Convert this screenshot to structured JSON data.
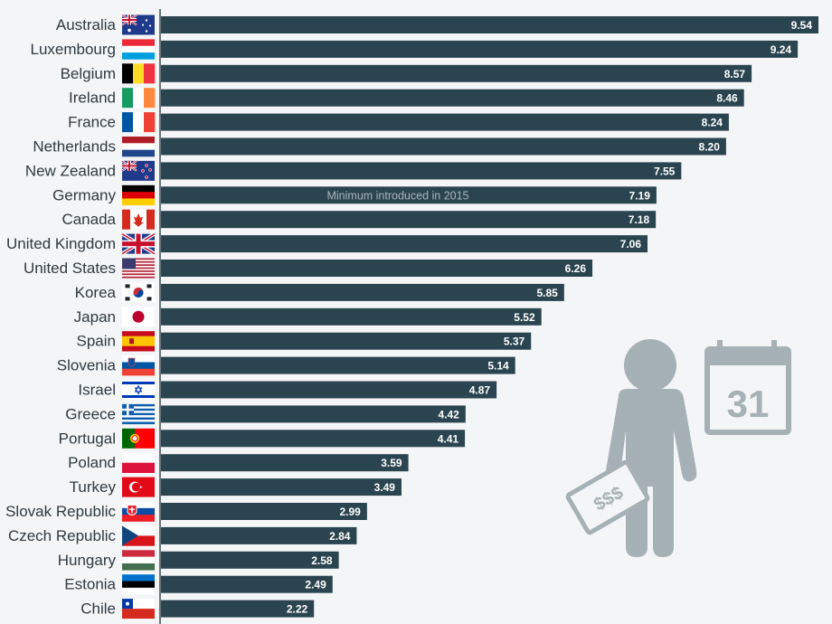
{
  "chart_data": {
    "type": "bar",
    "orientation": "horizontal",
    "categories": [
      "Australia",
      "Luxembourg",
      "Belgium",
      "Ireland",
      "France",
      "Netherlands",
      "New Zealand",
      "Germany",
      "Canada",
      "United Kingdom",
      "United States",
      "Korea",
      "Japan",
      "Spain",
      "Slovenia",
      "Israel",
      "Greece",
      "Portugal",
      "Poland",
      "Turkey",
      "Slovak Republic",
      "Czech Republic",
      "Hungary",
      "Estonia",
      "Chile"
    ],
    "values": [
      9.54,
      9.24,
      8.57,
      8.46,
      8.24,
      8.2,
      7.55,
      7.19,
      7.18,
      7.06,
      6.26,
      5.85,
      5.52,
      5.37,
      5.14,
      4.87,
      4.42,
      4.41,
      3.59,
      3.49,
      2.99,
      2.84,
      2.58,
      2.49,
      2.22
    ],
    "value_labels": [
      "9.54",
      "9.24",
      "8.57",
      "8.46",
      "8.24",
      "8.20",
      "7.55",
      "7.19",
      "7.18",
      "7.06",
      "6.26",
      "5.85",
      "5.52",
      "5.37",
      "5.14",
      "4.87",
      "4.42",
      "4.41",
      "3.59",
      "3.49",
      "2.99",
      "2.84",
      "2.58",
      "2.49",
      "2.22"
    ],
    "flags": [
      "australia-flag-icon",
      "luxembourg-flag-icon",
      "belgium-flag-icon",
      "ireland-flag-icon",
      "france-flag-icon",
      "netherlands-flag-icon",
      "new-zealand-flag-icon",
      "germany-flag-icon",
      "canada-flag-icon",
      "united-kingdom-flag-icon",
      "united-states-flag-icon",
      "korea-flag-icon",
      "japan-flag-icon",
      "spain-flag-icon",
      "slovenia-flag-icon",
      "israel-flag-icon",
      "greece-flag-icon",
      "portugal-flag-icon",
      "poland-flag-icon",
      "turkey-flag-icon",
      "slovak-republic-flag-icon",
      "czech-republic-flag-icon",
      "hungary-flag-icon",
      "estonia-flag-icon",
      "chile-flag-icon"
    ],
    "annotations": [
      {
        "category": "Germany",
        "text": "Minimum introduced in 2015"
      }
    ],
    "xlim": [
      0,
      9.8
    ],
    "bar_color": "#2b4550",
    "grid": false,
    "legend": "none"
  },
  "decor": {
    "icons": [
      "person-icon",
      "money-note-icon",
      "calendar-icon"
    ],
    "calendar_text": "31",
    "money_text": "$$$",
    "icon_color": "#a6b1b5"
  }
}
